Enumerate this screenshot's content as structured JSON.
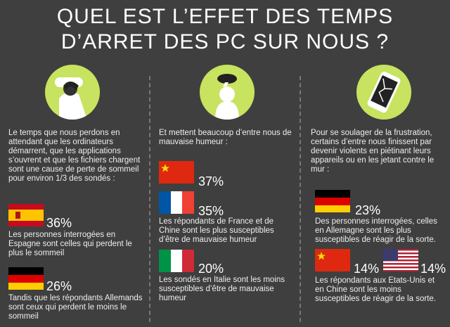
{
  "title_line1": "QUEL EST L’EFFET DES TEMPS",
  "title_line2": "D’ARRET DES PC SUR NOUS ?",
  "col1": {
    "intro": "Le temps que nous perdons en attendant que les ordinateurs démarrent, que les applications s’ouvrent et que les fichiers chargent sont une cause de perte de sommeil pour environ 1/3 des sondés :",
    "stat1": {
      "percent": "36%",
      "text": "Les personnes interrogées en Espagne sont celles qui perdent le plus le sommeil"
    },
    "stat2": {
      "percent": "26%",
      "text": "Tandis que les répondants Allemands sont ceux qui perdent le moins le sommeil"
    }
  },
  "col2": {
    "intro": "Et mettent beaucoup d’entre nous de mauvaise humeur :",
    "stat1": {
      "percent": "37%"
    },
    "stat2": {
      "percent": "35%",
      "text": "Les répondants de France et de Chine sont les plus susceptibles d’être de mauvaise humeur"
    },
    "stat3": {
      "percent": "20%",
      "text": "Les sondés en Italie sont les moins susceptibles d’être de mauvaise humeur"
    }
  },
  "col3": {
    "intro": "Pour se soulager de la frustration, certains d’entre nous finissent par devenir violents en piétinant leurs appareils ou en les jetant contre le mur :",
    "stat1": {
      "percent": "23%",
      "text": "Des personnes interrogées, celles en Allemagne sont les plus susceptibles de réagir de la sorte."
    },
    "stat2": {
      "percent_a": "14%",
      "percent_b": "14%",
      "text": "Les répondants aux Etats-Unis et en Chine sont les moins susceptibles de réagir de la sorte."
    }
  },
  "colors": {
    "background": "#3f3f3f",
    "accent": "#c7e35f"
  }
}
